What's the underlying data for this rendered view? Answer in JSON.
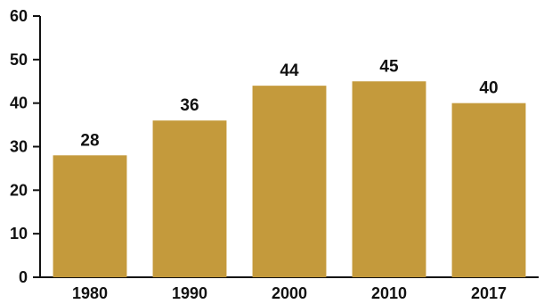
{
  "chart_data": {
    "type": "bar",
    "categories": [
      "1980",
      "1990",
      "2000",
      "2010",
      "2017"
    ],
    "values": [
      28,
      36,
      44,
      45,
      40
    ],
    "data_labels": [
      "28",
      "36",
      "44",
      "45",
      "40"
    ],
    "title": "",
    "xlabel": "",
    "ylabel": "",
    "ylim": [
      0,
      60
    ],
    "yticks": [
      0,
      10,
      20,
      30,
      40,
      50,
      60
    ],
    "ytick_labels": [
      "0",
      "10",
      "20",
      "30",
      "40",
      "50",
      "60"
    ],
    "grid": false,
    "legend": "none",
    "bar_color": "#C49A3C",
    "axis_color": "#111111"
  }
}
